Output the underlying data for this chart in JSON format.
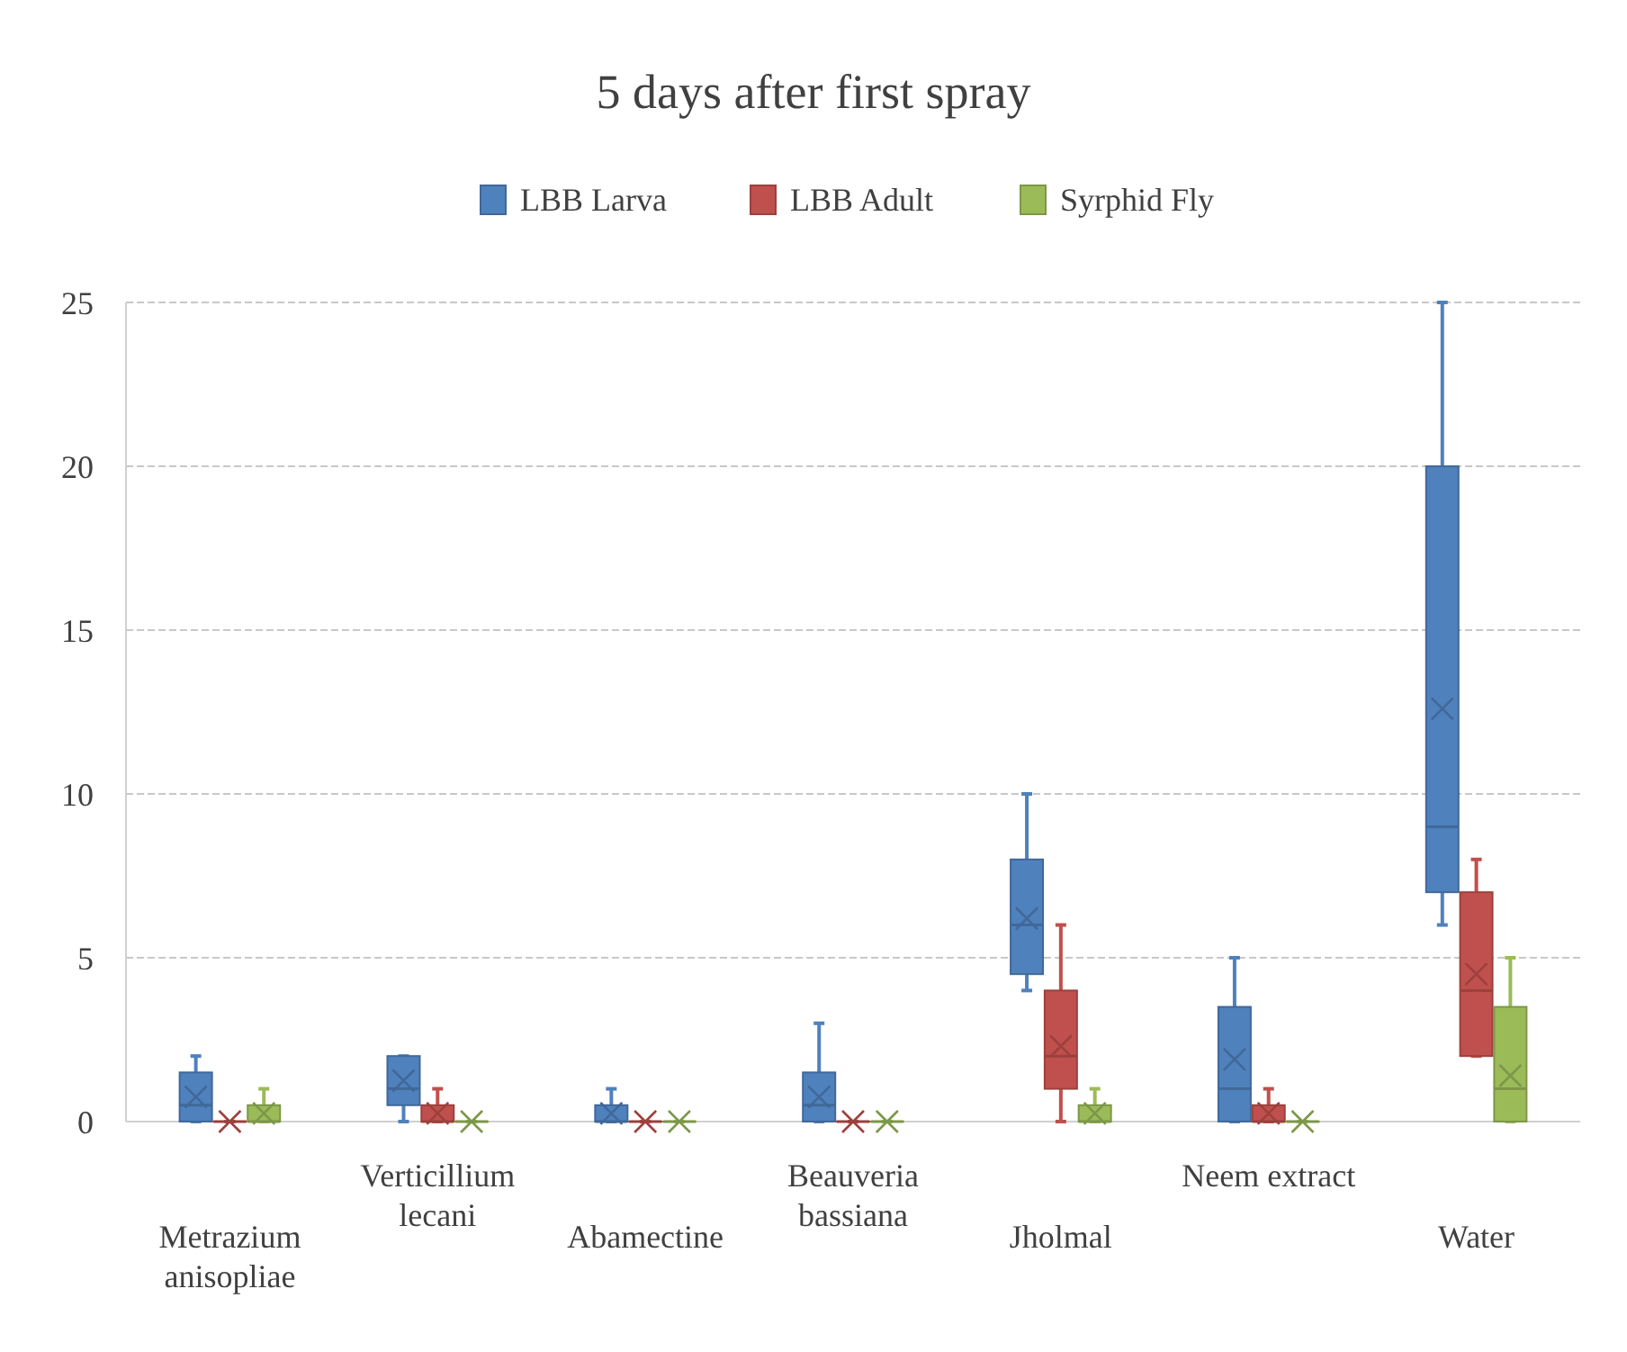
{
  "chart_data": {
    "type": "box",
    "title": "5 days after first spray",
    "categories": [
      "Metrazium anisopliae",
      "Verticillium lecani",
      "Abamectine",
      "Beauveria bassiana",
      "Jholmal",
      "Neem extract",
      "Water"
    ],
    "series": [
      {
        "name": "LBB Larva",
        "color": "#4f81bd",
        "boxes": [
          {
            "low": 0,
            "q1": 0,
            "median": 0.5,
            "q3": 1.5,
            "high": 2,
            "mean": 0.75
          },
          {
            "low": 0,
            "q1": 0.5,
            "median": 1,
            "q3": 2,
            "high": 2,
            "mean": 1.25
          },
          {
            "low": 0,
            "q1": 0,
            "median": 0,
            "q3": 0.5,
            "high": 1,
            "mean": 0.25
          },
          {
            "low": 0,
            "q1": 0,
            "median": 0.5,
            "q3": 1.5,
            "high": 3,
            "mean": 0.75
          },
          {
            "low": 4,
            "q1": 4.5,
            "median": 6,
            "q3": 8,
            "high": 10,
            "mean": 6.2
          },
          {
            "low": 0,
            "q1": 0,
            "median": 1,
            "q3": 3.5,
            "high": 5,
            "mean": 1.9
          },
          {
            "low": 6,
            "q1": 7,
            "median": 9,
            "q3": 20,
            "high": 25,
            "mean": 12.6
          }
        ]
      },
      {
        "name": "LBB Adult",
        "color": "#c0504d",
        "boxes": [
          {
            "low": 0,
            "q1": 0,
            "median": 0,
            "q3": 0,
            "high": 0,
            "mean": 0
          },
          {
            "low": 0,
            "q1": 0,
            "median": 0,
            "q3": 0.5,
            "high": 1,
            "mean": 0.25
          },
          {
            "low": 0,
            "q1": 0,
            "median": 0,
            "q3": 0,
            "high": 0,
            "mean": 0
          },
          {
            "low": 0,
            "q1": 0,
            "median": 0,
            "q3": 0,
            "high": 0,
            "mean": 0
          },
          {
            "low": 0,
            "q1": 1,
            "median": 2,
            "q3": 4,
            "high": 6,
            "mean": 2.3
          },
          {
            "low": 0,
            "q1": 0,
            "median": 0,
            "q3": 0.5,
            "high": 1,
            "mean": 0.25
          },
          {
            "low": 2,
            "q1": 2,
            "median": 4,
            "q3": 7,
            "high": 8,
            "mean": 4.5
          }
        ]
      },
      {
        "name": "Syrphid Fly",
        "color": "#9bbb59",
        "boxes": [
          {
            "low": 0,
            "q1": 0,
            "median": 0,
            "q3": 0.5,
            "high": 1,
            "mean": 0.25
          },
          {
            "low": 0,
            "q1": 0,
            "median": 0,
            "q3": 0,
            "high": 0,
            "mean": 0
          },
          {
            "low": 0,
            "q1": 0,
            "median": 0,
            "q3": 0,
            "high": 0,
            "mean": 0
          },
          {
            "low": 0,
            "q1": 0,
            "median": 0,
            "q3": 0,
            "high": 0,
            "mean": 0
          },
          {
            "low": 0,
            "q1": 0,
            "median": 0,
            "q3": 0.5,
            "high": 1,
            "mean": 0.25
          },
          {
            "low": 0,
            "q1": 0,
            "median": 0,
            "q3": 0,
            "high": 0,
            "mean": 0
          },
          {
            "low": 0,
            "q1": 0,
            "median": 1,
            "q3": 3.5,
            "high": 5,
            "mean": 1.4
          }
        ]
      }
    ],
    "ylim": [
      0,
      25
    ],
    "yticks": [
      0,
      5,
      10,
      15,
      20,
      25
    ],
    "grid": "y",
    "legend": "top",
    "marker": "cross"
  }
}
